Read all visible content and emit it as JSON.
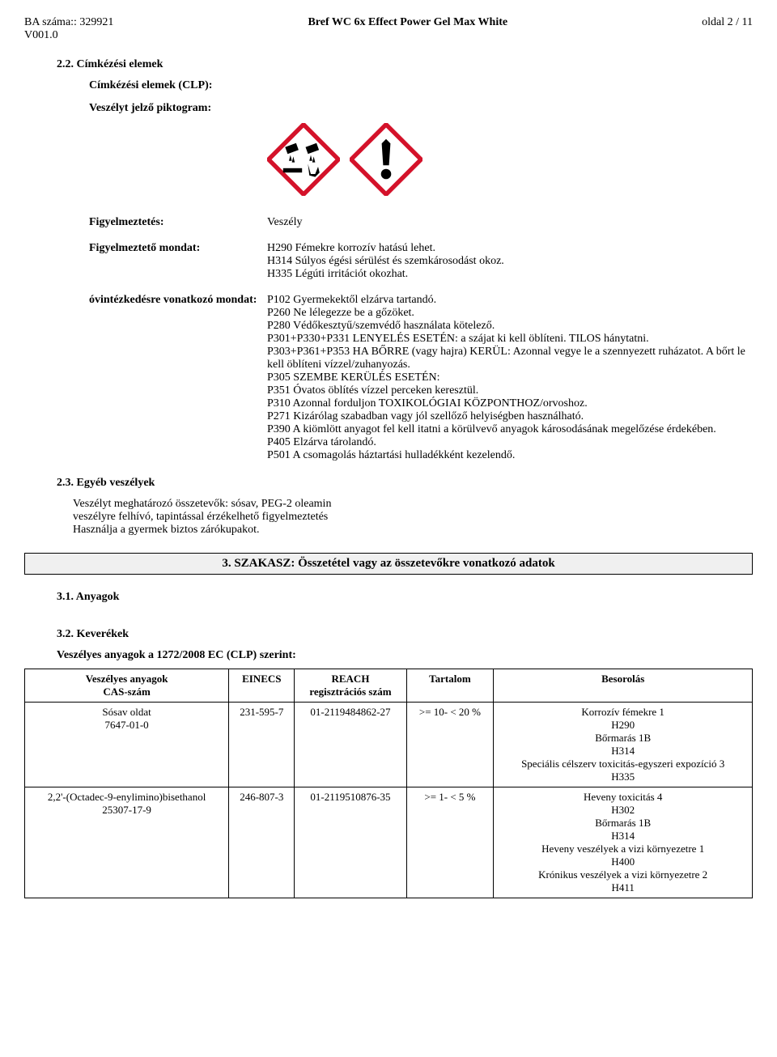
{
  "header": {
    "ba_line1": "BA száma:: 329921",
    "ba_line2": "V001.0",
    "title": "Bref WC 6x Effect Power Gel Max White",
    "page": "oldal 2 / 11"
  },
  "s22": {
    "num_title": "2.2. Címkézési elemek",
    "clp_title": "Címkézési elemek (CLP):",
    "pictogram_label": "Veszélyt jelző piktogram:",
    "pictograms": {
      "corrosion": {
        "border": "#d4122a",
        "fill": "#ffffff",
        "symbol_color": "#000000"
      },
      "exclaim": {
        "border": "#d4122a",
        "fill": "#ffffff",
        "symbol_color": "#000000"
      }
    },
    "signal_label": "Figyelmeztetés:",
    "signal_value": "Veszély",
    "hazard_label": "Figyelmeztető mondat:",
    "hazard_lines": [
      "H290 Fémekre korrozív hatású lehet.",
      "H314 Súlyos égési sérülést és szemkárosodást okoz.",
      "H335 Légúti irritációt okozhat."
    ],
    "prec_label": "óvintézkedésre vonatkozó mondat:",
    "prec_lines": [
      "P102 Gyermekektől elzárva tartandó.",
      "P260 Ne lélegezze be a gőzöket.",
      "P280 Védőkesztyű/szemvédő használata kötelező.",
      "P301+P330+P331 LENYELÉS ESETÉN: a szájat ki kell öblíteni. TILOS hánytatni.",
      "P303+P361+P353 HA BŐRRE (vagy hajra) KERÜL: Azonnal vegye le a szennyezett ruházatot. A bőrt le kell öblíteni vízzel/zuhanyozás.",
      "P305 SZEMBE KERÜLÉS ESETÉN:",
      "P351 Óvatos öblítés vízzel perceken keresztül.",
      "P310 Azonnal forduljon TOXIKOLÓGIAI KÖZPONTHOZ/orvoshoz.",
      "P271 Kizárólag szabadban vagy jól szellőző helyiségben használható.",
      "P390 A kiömlött anyagot fel kell itatni a körülvevő anyagok károsodásának megelőzése érdekében.",
      "P405 Elzárva tárolandó.",
      "P501 A csomagolás háztartási hulladékként kezelendő."
    ]
  },
  "s23": {
    "title": "2.3. Egyéb veszélyek",
    "lines": [
      "Veszélyt meghatározó összetevők: sósav, PEG-2 oleamin",
      "veszélyre felhívó, tapintással érzékelhető figyelmeztetés",
      "Használja a  gyermek biztos zárókupakot."
    ]
  },
  "s3_header": "3. SZAKASZ: Összetétel vagy az összetevőkre vonatkozó adatok",
  "s31": "3.1. Anyagok",
  "s32": {
    "title": "3.2. Keverékek",
    "intro": "Veszélyes anyagok a 1272/2008 EC (CLP)  szerint:"
  },
  "table": {
    "headers": {
      "c1a": "Veszélyes anyagok",
      "c1b": "CAS-szám",
      "c2": "EINECS",
      "c3a": "REACH",
      "c3b": "regisztrációs szám",
      "c4": "Tartalom",
      "c5": "Besorolás"
    },
    "rows": [
      {
        "name": "Sósav oldat",
        "cas": "7647-01-0",
        "einecs": "231-595-7",
        "reach": "01-2119484862-27",
        "content": ">=  10- <  20 %",
        "class_lines": [
          "Korrozív fémekre 1",
          "H290",
          "Bőrmarás 1B",
          "H314",
          "Speciális célszerv toxicitás-egyszeri expozíció 3",
          "H335"
        ]
      },
      {
        "name": "2,2'-(Octadec-9-enylimino)bisethanol",
        "cas": "25307-17-9",
        "einecs": "246-807-3",
        "reach": "01-2119510876-35",
        "content": ">=   1- <   5 %",
        "class_lines": [
          "Heveny toxicitás 4",
          "H302",
          "Bőrmarás 1B",
          "H314",
          "Heveny veszélyek a vizi környezetre 1",
          "H400",
          "Krónikus veszélyek a vizi környezetre 2",
          "H411"
        ]
      }
    ]
  }
}
